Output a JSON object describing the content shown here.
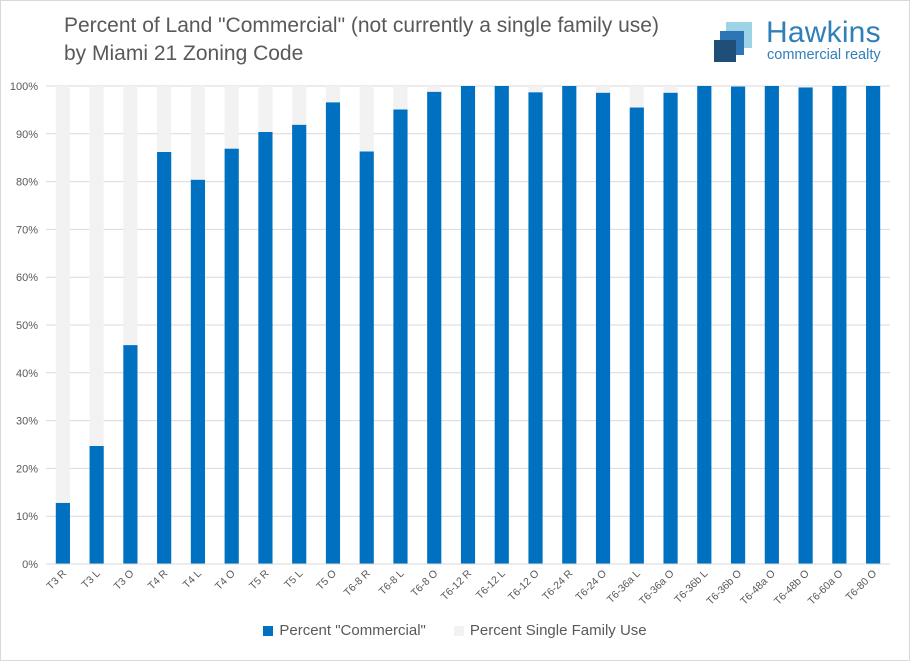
{
  "title_lines": [
    "Percent of Land \"Commercial\" (not currently a single family use)",
    "by Miami 21 Zoning Code"
  ],
  "logo": {
    "name": "Hawkins",
    "subtitle": "commercial realty",
    "color": "#2f7fb9",
    "mark_colors": [
      "#1f4e79",
      "#2e75b6",
      "#9dd3e6"
    ]
  },
  "legend": {
    "position": "bottom",
    "items": [
      {
        "label": "Percent \"Commercial\"",
        "color": "#0070c0"
      },
      {
        "label": "Percent Single Family Use",
        "color": "#f2f2f2"
      }
    ]
  },
  "chart_data": {
    "type": "bar",
    "stacked": true,
    "categories": [
      "T3 R",
      "T3 L",
      "T3 O",
      "T4 R",
      "T4 L",
      "T4 O",
      "T5 R",
      "T5 L",
      "T5 O",
      "T6-8 R",
      "T6-8 L",
      "T6-8 O",
      "T6-12 R",
      "T6-12 L",
      "T6-12 O",
      "T6-24 R",
      "T6-24 O",
      "T6-36a L",
      "T6-36a O",
      "T6-36b L",
      "T6-36b O",
      "T6-48a O",
      "T6-48b O",
      "T6-60a O",
      "T6-80 O"
    ],
    "series": [
      {
        "name": "Percent \"Commercial\"",
        "color": "#0070c0",
        "values": [
          12.8,
          24.7,
          45.8,
          86.2,
          80.4,
          86.9,
          90.4,
          91.9,
          96.6,
          86.3,
          95.1,
          98.8,
          100,
          100,
          98.7,
          100,
          98.6,
          95.5,
          98.6,
          100,
          99.9,
          100,
          99.7,
          100,
          100
        ]
      },
      {
        "name": "Percent Single Family Use",
        "color": "#f2f2f2",
        "values": [
          87.2,
          75.3,
          54.2,
          13.8,
          19.6,
          13.1,
          9.6,
          8.1,
          3.4,
          13.7,
          4.9,
          1.2,
          0,
          0,
          1.3,
          0,
          1.4,
          4.5,
          1.4,
          0,
          0.1,
          0,
          0.3,
          0,
          0
        ]
      }
    ],
    "ylim": [
      0,
      100
    ],
    "yticks": [
      "0%",
      "10%",
      "20%",
      "30%",
      "40%",
      "50%",
      "60%",
      "70%",
      "80%",
      "90%",
      "100%"
    ],
    "grid": true,
    "xlabel": "",
    "ylabel": ""
  }
}
